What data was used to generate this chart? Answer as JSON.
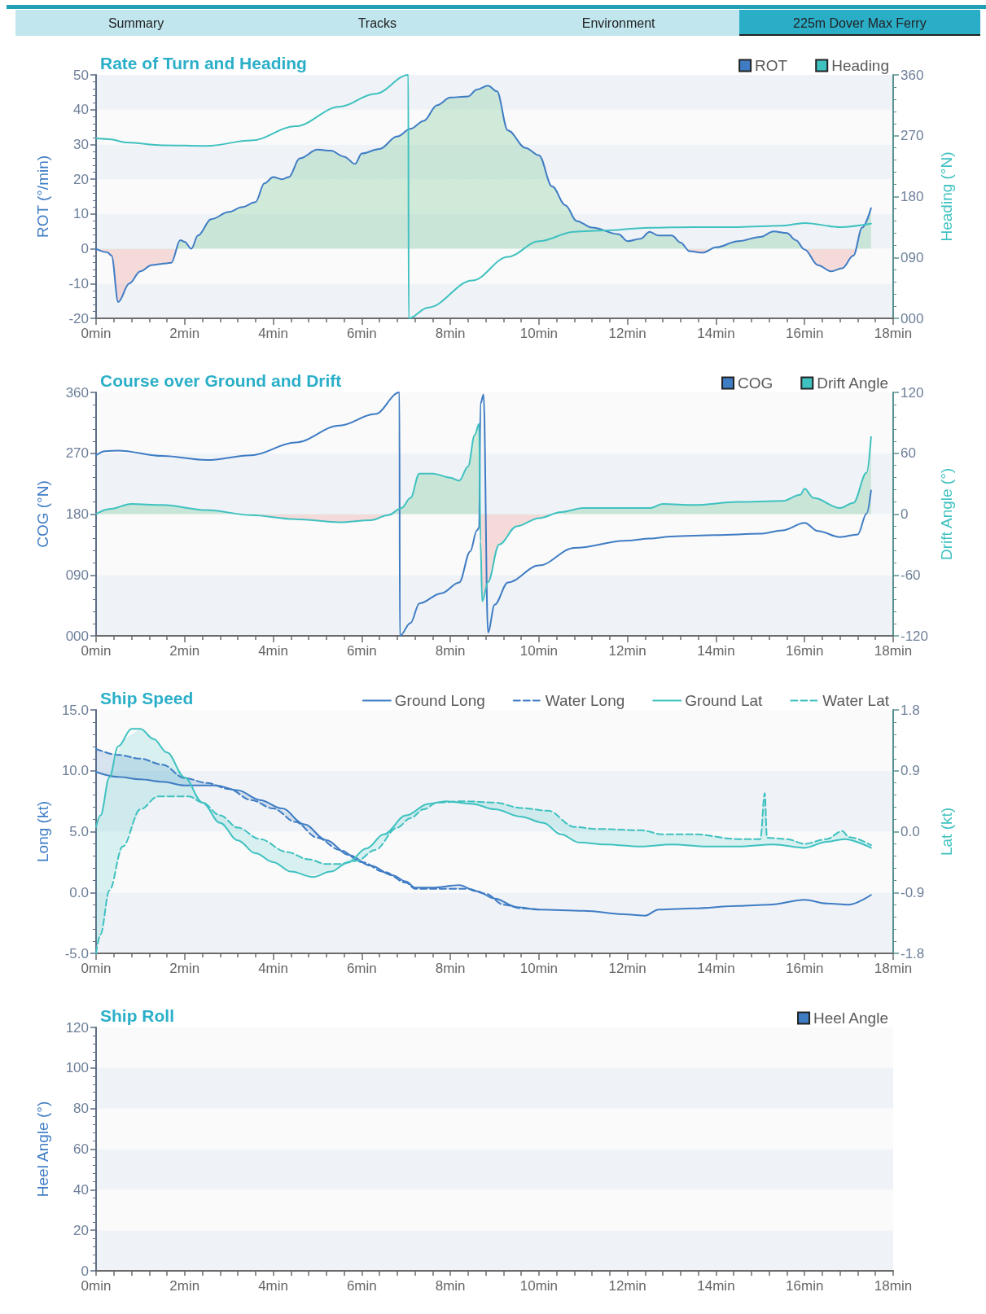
{
  "chart_data": [
    {
      "type": "other",
      "annotations": [
        "Summary",
        "Tracks",
        "Environment",
        "225m Dover Max Ferry"
      ]
    },
    {
      "type": "line",
      "title": "Rate of Turn and Heading",
      "ylabel": "ROT (°/min)",
      "y2label": "Heading (°N)",
      "legend": "top right",
      "xlim": [
        0,
        18
      ],
      "xticks": [
        {
          "value": 0,
          "label": "0min"
        },
        {
          "value": 2,
          "label": "2min"
        },
        {
          "value": 4,
          "label": "4min"
        },
        {
          "value": 6,
          "label": "6min"
        },
        {
          "value": 8,
          "label": "8min"
        },
        {
          "value": 10,
          "label": "10min"
        },
        {
          "value": 12,
          "label": "12min"
        },
        {
          "value": 14,
          "label": "14min"
        },
        {
          "value": 16,
          "label": "16min"
        },
        {
          "value": 18,
          "label": "18min"
        }
      ],
      "ylim": [
        -20,
        50
      ],
      "yticks": [
        -20,
        -10,
        0,
        10,
        20,
        30,
        40,
        50
      ],
      "y2lim": [
        0,
        360
      ],
      "y2ticks": [
        {
          "value": 0,
          "label": "000"
        },
        {
          "value": 90,
          "label": "090"
        },
        {
          "value": 180,
          "label": "180"
        },
        {
          "value": 270,
          "label": "270"
        },
        {
          "value": 360,
          "label": "360"
        }
      ],
      "series": [
        {
          "name": "ROT",
          "type": "area",
          "color": "#3f7cc4",
          "x": [
            0,
            0.25,
            0.35,
            0.5,
            0.75,
            1.0,
            1.25,
            1.6,
            1.7,
            1.9,
            2.0,
            2.15,
            2.3,
            2.6,
            3.0,
            3.3,
            3.6,
            3.8,
            4.0,
            4.2,
            4.35,
            4.6,
            5.0,
            5.3,
            5.6,
            5.85,
            6.0,
            6.4,
            6.8,
            7.1,
            7.4,
            7.7,
            8.0,
            8.4,
            8.6,
            8.85,
            9.05,
            9.3,
            9.7,
            10.0,
            10.3,
            10.6,
            10.85,
            11.2,
            11.8,
            12.0,
            12.3,
            12.5,
            12.7,
            13.0,
            13.2,
            13.4,
            13.7,
            14.0,
            14.5,
            15.0,
            15.3,
            15.6,
            15.8,
            16.0,
            16.3,
            16.6,
            16.85,
            17.1,
            17.3,
            17.5
          ],
          "values": [
            0,
            -1,
            -2,
            -15.3,
            -10,
            -6.5,
            -4.7,
            -4.2,
            -4,
            2.5,
            2,
            0,
            3.8,
            8.5,
            10.6,
            12,
            13.4,
            18.8,
            20.6,
            20,
            20.6,
            26,
            28.5,
            28.2,
            26.5,
            24.4,
            27.4,
            28.7,
            32.3,
            34.5,
            36.8,
            41.3,
            43.5,
            43.8,
            45.8,
            46.9,
            45.3,
            34,
            29,
            26.9,
            17.9,
            12.5,
            8,
            6.1,
            4.2,
            2.2,
            2.9,
            4.9,
            3.8,
            3.8,
            1.8,
            -0.7,
            -1.1,
            0.4,
            2.2,
            3.4,
            5,
            4.5,
            2.5,
            -0.2,
            -4.7,
            -6.5,
            -5.6,
            -2,
            6.1,
            11.7
          ]
        },
        {
          "name": "Heading",
          "type": "line",
          "axis": "y2",
          "color": "#3fc1c0",
          "x": [
            0,
            0.3,
            0.7,
            1.5,
            2.5,
            3.5,
            4.5,
            5.5,
            6.3,
            7.05,
            7.06,
            7.5,
            8.5,
            9.3,
            10.0,
            10.8,
            11.5,
            12.5,
            13.5,
            14.5,
            15.5,
            16.0,
            16.8,
            17.5
          ],
          "values": [
            266,
            265,
            260,
            256,
            255,
            263,
            284,
            313,
            332,
            360,
            0,
            16,
            56,
            91,
            114,
            128,
            130,
            134,
            135,
            135,
            137,
            141,
            135,
            140
          ]
        }
      ]
    },
    {
      "type": "line",
      "title": "Course over Ground and Drift",
      "ylabel": "COG (°N)",
      "y2label": "Drift Angle (°)",
      "legend": "top right",
      "xlim": [
        0,
        18
      ],
      "xticks": [
        {
          "value": 0,
          "label": "0min"
        },
        {
          "value": 2,
          "label": "2min"
        },
        {
          "value": 4,
          "label": "4min"
        },
        {
          "value": 6,
          "label": "6min"
        },
        {
          "value": 8,
          "label": "8min"
        },
        {
          "value": 10,
          "label": "10min"
        },
        {
          "value": 12,
          "label": "12min"
        },
        {
          "value": 14,
          "label": "14min"
        },
        {
          "value": 16,
          "label": "16min"
        },
        {
          "value": 18,
          "label": "18min"
        }
      ],
      "ylim": [
        0,
        360
      ],
      "yticks": [
        {
          "value": 0,
          "label": "000"
        },
        {
          "value": 90,
          "label": "090"
        },
        {
          "value": 180,
          "label": "180"
        },
        {
          "value": 270,
          "label": "270"
        },
        {
          "value": 360,
          "label": "360"
        }
      ],
      "y2lim": [
        -120,
        120
      ],
      "y2ticks": [
        -120,
        -60,
        0,
        60,
        120
      ],
      "series": [
        {
          "name": "COG",
          "type": "line",
          "color": "#3f7cc4",
          "x": [
            0,
            0.2,
            0.5,
            1.5,
            2.5,
            3.5,
            4.5,
            5.5,
            6.3,
            6.85,
            6.86,
            7.1,
            7.3,
            7.8,
            8.2,
            8.45,
            8.6,
            8.65,
            8.68,
            8.75,
            8.85,
            9.0,
            9.3,
            10.0,
            10.8,
            12.0,
            12.5,
            13.0,
            14.0,
            15.0,
            15.5,
            16.0,
            16.3,
            16.8,
            17.2,
            17.4,
            17.5
          ],
          "values": [
            267,
            273,
            274,
            266,
            260,
            267,
            286,
            311,
            328,
            360,
            0,
            19,
            48,
            63,
            79,
            125,
            156,
            160,
            343,
            357,
            5,
            46,
            79,
            104,
            130,
            141,
            144,
            147,
            149,
            151,
            156,
            167,
            155,
            146,
            150,
            181,
            215
          ]
        },
        {
          "name": "Drift Angle",
          "type": "area",
          "axis": "y2",
          "color": "#3fc1c0",
          "x": [
            0,
            0.3,
            0.8,
            1.5,
            2.5,
            3.5,
            4.5,
            5.5,
            6.2,
            6.6,
            6.9,
            7.1,
            7.3,
            7.6,
            8.0,
            8.2,
            8.4,
            8.55,
            8.65,
            8.68,
            8.72,
            8.85,
            9.1,
            9.5,
            10.0,
            10.5,
            11.0,
            12.0,
            12.5,
            12.8,
            13.5,
            14.5,
            15.5,
            15.9,
            16.0,
            16.2,
            16.8,
            17.1,
            17.4,
            17.5
          ],
          "values": [
            0,
            5,
            10,
            9,
            4,
            -1,
            -5,
            -8,
            -6,
            -1,
            6,
            16,
            40,
            40,
            36,
            33,
            47,
            78,
            89,
            -27,
            -86,
            -67,
            -30,
            -12,
            -4,
            2,
            6,
            6,
            6,
            10,
            9,
            12,
            13,
            19,
            25,
            16,
            6,
            11,
            41,
            76
          ]
        }
      ]
    },
    {
      "type": "line",
      "title": "Ship Speed",
      "ylabel": "Long (kt)",
      "y2label": "Lat (kt)",
      "legend": "top right",
      "xlim": [
        0,
        18
      ],
      "xticks": [
        {
          "value": 0,
          "label": "0min"
        },
        {
          "value": 2,
          "label": "2min"
        },
        {
          "value": 4,
          "label": "4min"
        },
        {
          "value": 6,
          "label": "6min"
        },
        {
          "value": 8,
          "label": "8min"
        },
        {
          "value": 10,
          "label": "10min"
        },
        {
          "value": 12,
          "label": "12min"
        },
        {
          "value": 14,
          "label": "14min"
        },
        {
          "value": 16,
          "label": "16min"
        },
        {
          "value": 18,
          "label": "18min"
        }
      ],
      "ylim": [
        -5,
        15
      ],
      "yticks": [
        {
          "value": -5,
          "label": "-5.0"
        },
        {
          "value": 0,
          "label": "0.0"
        },
        {
          "value": 5,
          "label": "5.0"
        },
        {
          "value": 10,
          "label": "10.0"
        },
        {
          "value": 15,
          "label": "15.0"
        }
      ],
      "y2lim": [
        -1.8,
        1.8
      ],
      "y2ticks": [
        -1.8,
        -0.9,
        {
          "value": 0,
          "label": "0.0"
        },
        0.9,
        1.8
      ],
      "series": [
        {
          "name": "Ground Long",
          "line_style": "solid",
          "color": "#3f7cc4",
          "x": [
            0,
            0.5,
            1.0,
            1.5,
            2.0,
            2.7,
            3.2,
            3.7,
            4.2,
            4.7,
            5.2,
            5.7,
            6.2,
            6.7,
            7.0,
            7.2,
            7.6,
            8.2,
            8.6,
            9.0,
            9.5,
            10.0,
            11.0,
            12.0,
            12.4,
            12.7,
            13.5,
            14.5,
            15.2,
            16.0,
            16.5,
            17.0,
            17.5
          ],
          "values": [
            9.9,
            9.5,
            9.3,
            9.1,
            8.8,
            8.8,
            8.4,
            7.6,
            6.9,
            5.6,
            4.3,
            3.1,
            2.2,
            1.4,
            0.9,
            0.4,
            0.4,
            0.6,
            0.1,
            -0.5,
            -1.2,
            -1.4,
            -1.5,
            -1.8,
            -1.9,
            -1.4,
            -1.3,
            -1.1,
            -1.0,
            -0.6,
            -0.9,
            -1.0,
            -0.2
          ]
        },
        {
          "name": "Water Long",
          "line_style": "dashed",
          "color": "#3f7cc4",
          "x": [
            0,
            0.5,
            1.0,
            1.5,
            2.0,
            2.5,
            3.0,
            3.5,
            4.0,
            4.5,
            5.0,
            5.5,
            6.0,
            6.5,
            7.0,
            7.2,
            8.0,
            8.4,
            8.8,
            9.2,
            9.6,
            10.0
          ],
          "values": [
            11.8,
            11.3,
            11.0,
            10.5,
            9.4,
            9.0,
            8.5,
            7.6,
            6.9,
            5.8,
            4.5,
            3.5,
            2.5,
            1.7,
            0.8,
            0.3,
            0.3,
            0.3,
            -0.1,
            -1.0,
            -1.3,
            -1.4
          ],
          "lower": [
            9.9,
            9.5,
            9.3,
            9.1,
            8.8,
            8.8,
            8.5,
            7.6,
            6.9,
            5.8,
            4.5,
            3.5,
            2.5,
            1.7,
            0.8,
            0.3,
            0.3,
            0.3,
            -0.2,
            -1.0,
            -1.3,
            -1.4
          ],
          "upper": [
            11.8,
            11.3,
            11.0,
            10.5,
            9.4,
            9.0,
            8.6,
            7.9,
            7.2,
            6.1,
            4.8,
            3.6,
            2.6,
            1.7,
            0.9,
            0.4,
            0.5,
            0.35,
            -0.1,
            -0.8,
            -1.25,
            -1.4
          ]
        },
        {
          "name": "Ground Lat",
          "line_style": "solid",
          "axis": "y2",
          "color": "#3fc1c0",
          "x": [
            0,
            0.1,
            0.3,
            0.5,
            0.8,
            1.0,
            1.3,
            1.6,
            2.0,
            2.4,
            2.8,
            3.2,
            3.6,
            4.0,
            4.4,
            4.9,
            5.3,
            5.7,
            6.1,
            6.5,
            7.0,
            7.5,
            7.9,
            8.5,
            9.0,
            9.6,
            10.1,
            10.5,
            10.9,
            11.5,
            12.3,
            13.0,
            13.8,
            14.5,
            15.3,
            16.0,
            16.5,
            16.9,
            17.5
          ],
          "values": [
            0.07,
            0.24,
            0.8,
            1.26,
            1.52,
            1.52,
            1.37,
            1.17,
            0.8,
            0.43,
            0.13,
            -0.13,
            -0.32,
            -0.45,
            -0.59,
            -0.67,
            -0.59,
            -0.45,
            -0.25,
            -0.04,
            0.24,
            0.41,
            0.45,
            0.41,
            0.33,
            0.22,
            0.13,
            -0.04,
            -0.16,
            -0.19,
            -0.22,
            -0.19,
            -0.22,
            -0.22,
            -0.19,
            -0.24,
            -0.15,
            -0.11,
            -0.24
          ]
        },
        {
          "name": "Water Lat",
          "line_style": "dashed",
          "axis": "y2",
          "color": "#3fc1c0",
          "x": [
            0,
            0.1,
            0.3,
            0.6,
            1.0,
            1.4,
            1.7,
            2.1,
            2.4,
            2.8,
            3.2,
            3.7,
            4.3,
            4.8,
            5.2,
            5.5,
            5.9,
            6.3,
            6.8,
            7.1,
            7.4,
            7.7,
            8.3,
            9.0,
            9.6,
            10.2,
            10.8,
            11.3,
            12.3,
            12.8,
            13.5,
            14.5,
            15.0,
            15.1,
            15.15,
            15.6,
            16.0,
            16.5,
            16.85,
            17.0,
            17.5
          ],
          "values": [
            -1.8,
            -1.52,
            -0.87,
            -0.22,
            0.33,
            0.52,
            0.52,
            0.52,
            0.43,
            0.24,
            0.06,
            -0.11,
            -0.3,
            -0.41,
            -0.48,
            -0.48,
            -0.43,
            -0.27,
            0.06,
            0.2,
            0.33,
            0.43,
            0.45,
            0.43,
            0.35,
            0.31,
            0.07,
            0.04,
            0.02,
            -0.04,
            -0.04,
            -0.11,
            -0.11,
            0.57,
            -0.09,
            -0.11,
            -0.18,
            -0.11,
            0.01,
            -0.08,
            -0.2
          ],
          "lower": [
            -1.8,
            -1.52,
            -0.87,
            -0.22,
            0.33,
            0.52,
            0.52,
            0.52,
            0.43,
            0.13,
            -0.13,
            -0.35,
            -0.55,
            -0.65,
            -0.61,
            -0.52,
            -0.43,
            -0.27,
            0.06,
            0.2,
            0.33,
            0.43,
            0.42,
            0.33,
            0.22,
            0.11,
            -0.13,
            -0.18,
            -0.22,
            -0.2,
            -0.21,
            -0.22,
            -0.2,
            -0.2,
            -0.2,
            -0.21,
            -0.24,
            -0.15,
            -0.11,
            -0.13,
            -0.24
          ],
          "upper": [
            0.07,
            0.24,
            0.8,
            1.35,
            1.52,
            1.3,
            1.08,
            0.71,
            0.43,
            0.24,
            0.06,
            -0.11,
            -0.3,
            -0.41,
            -0.48,
            -0.48,
            -0.35,
            -0.15,
            0.13,
            0.27,
            0.38,
            0.43,
            0.45,
            0.43,
            0.35,
            0.31,
            0.07,
            0.04,
            0.02,
            -0.04,
            -0.04,
            -0.11,
            -0.11,
            0.57,
            -0.09,
            -0.11,
            -0.18,
            -0.11,
            0.01,
            -0.08,
            -0.2
          ]
        }
      ]
    },
    {
      "type": "line",
      "title": "Ship Roll",
      "ylabel": "Heel Angle (°)",
      "legend": "top right",
      "categories": [
        "0min",
        null,
        null,
        null,
        null,
        "2min",
        null,
        null,
        null,
        null,
        "4min",
        null,
        null,
        null,
        null,
        "6min",
        null,
        null,
        null,
        null,
        "8min",
        null,
        null,
        null,
        null,
        "10min",
        null,
        null,
        null,
        null,
        "12min",
        null,
        null,
        null,
        null,
        "14min",
        null,
        null,
        null,
        null,
        "16min",
        null,
        null,
        null,
        null,
        "18min"
      ],
      "ylim": [
        0,
        120
      ],
      "yticks": [
        0,
        20,
        40,
        60,
        80,
        100,
        120
      ],
      "series": [
        {
          "name": "Heel Angle",
          "color": "#3f7cc4",
          "values": [
            null,
            null,
            null,
            null,
            null,
            null,
            null,
            null,
            null,
            null,
            null,
            null,
            null,
            null,
            null,
            null,
            null,
            null,
            null,
            null,
            null,
            null,
            null,
            null,
            null,
            null,
            null,
            null,
            null,
            null,
            null,
            null,
            null,
            null,
            null,
            null,
            null,
            null,
            null,
            null,
            null,
            null,
            null,
            null,
            null,
            null
          ]
        }
      ]
    }
  ]
}
